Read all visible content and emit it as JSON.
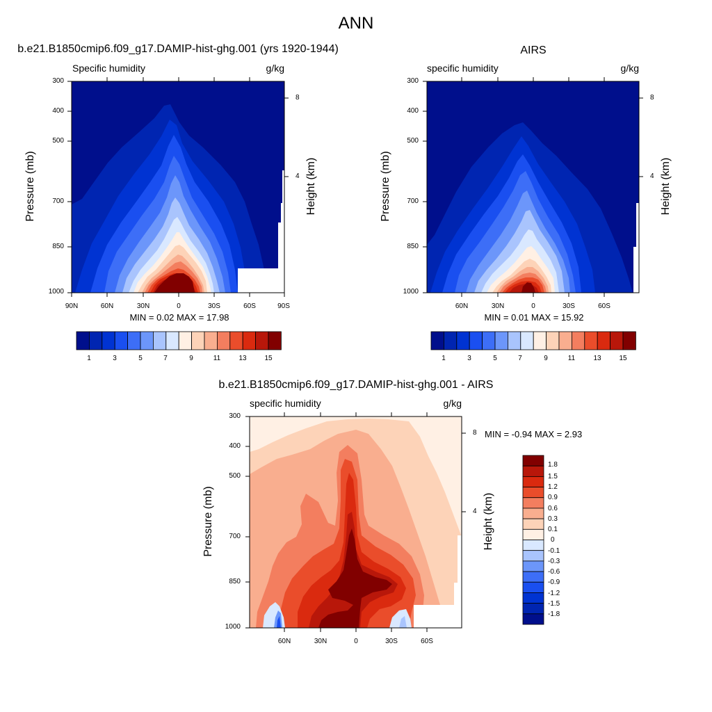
{
  "title": "ANN",
  "panels": [
    {
      "id": "model",
      "title": "b.e21.B1850cmip6.f09_g17.DAMIP-hist-ghg.001 (yrs 1920-1944)",
      "left_label": "Specific humidity",
      "right_label": "g/kg",
      "ylabel": "Pressure (mb)",
      "ylabel_right": "Height (km)",
      "pressure_ticks": [
        "300",
        "400",
        "500",
        "700",
        "850",
        "1000"
      ],
      "height_ticks": [
        "8",
        "4"
      ],
      "lat_ticks": [
        "90N",
        "60N",
        "30N",
        "0",
        "30S",
        "60S",
        "90S"
      ],
      "min_max": "MIN =   0.02  MAX =  17.98",
      "colorbar_labels": [
        "1",
        "3",
        "5",
        "7",
        "9",
        "11",
        "13",
        "15"
      ]
    },
    {
      "id": "obs",
      "title": "AIRS",
      "left_label": "specific humidity",
      "right_label": "g/kg",
      "ylabel": "Pressure (mb)",
      "ylabel_right": "Height (km)",
      "pressure_ticks": [
        "300",
        "400",
        "500",
        "700",
        "850",
        "1000"
      ],
      "height_ticks": [
        "8",
        "4"
      ],
      "lat_ticks": [
        "60N",
        "30N",
        "0",
        "30S",
        "60S"
      ],
      "min_max": "MIN =   0.01  MAX =  15.92",
      "colorbar_labels": [
        "1",
        "3",
        "5",
        "7",
        "9",
        "11",
        "13",
        "15"
      ]
    },
    {
      "id": "diff",
      "title": "b.e21.B1850cmip6.f09_g17.DAMIP-hist-ghg.001 - AIRS",
      "left_label": "specific humidity",
      "right_label": "g/kg",
      "ylabel": "Pressure (mb)",
      "ylabel_right": "Height (km)",
      "pressure_ticks": [
        "300",
        "400",
        "500",
        "700",
        "850",
        "1000"
      ],
      "height_ticks": [
        "8",
        "4"
      ],
      "lat_ticks": [
        "60N",
        "30N",
        "0",
        "30S",
        "60S"
      ],
      "min_max": "MIN =  -0.94  MAX =   2.93",
      "colorbar_labels": [
        "1.8",
        "1.5",
        "1.2",
        "0.9",
        "0.6",
        "0.3",
        "0.1",
        "0",
        "-0.1",
        "-0.3",
        "-0.6",
        "-0.9",
        "-1.2",
        "-1.5",
        "-1.8"
      ]
    }
  ],
  "chart_data": [
    {
      "type": "heatmap",
      "x_axis": "latitude",
      "y_axis": "pressure (mb)",
      "ylim": [
        1000,
        300
      ],
      "xlim": [
        "90N",
        "90S"
      ],
      "contour_levels": [
        1,
        2,
        3,
        4,
        5,
        6,
        7,
        8,
        9,
        10,
        11,
        12,
        13,
        14,
        15,
        16
      ],
      "min": 0.02,
      "max": 17.98
    },
    {
      "type": "heatmap",
      "x_axis": "latitude",
      "y_axis": "pressure (mb)",
      "ylim": [
        1000,
        300
      ],
      "contour_levels": [
        1,
        2,
        3,
        4,
        5,
        6,
        7,
        8,
        9,
        10,
        11,
        12,
        13,
        14,
        15,
        16
      ],
      "min": 0.01,
      "max": 15.92
    },
    {
      "type": "heatmap",
      "x_axis": "latitude",
      "y_axis": "pressure (mb)",
      "ylim": [
        1000,
        300
      ],
      "contour_levels": [
        -1.8,
        -1.5,
        -1.2,
        -0.9,
        -0.6,
        -0.3,
        -0.1,
        0,
        0.1,
        0.3,
        0.6,
        0.9,
        1.2,
        1.5,
        1.8
      ],
      "min": -0.94,
      "max": 2.93
    }
  ],
  "colors": {
    "seq": [
      "#000f8c",
      "#0025b1",
      "#0033d2",
      "#1a4ff0",
      "#3d6ef7",
      "#6c96fa",
      "#a9c4fd",
      "#d9e8ff",
      "#fff0e4",
      "#fdd3b8",
      "#f9ae8f",
      "#f37e5f",
      "#ea4d2b",
      "#da2a0f",
      "#b8170a",
      "#810000"
    ],
    "div": [
      "#000f8c",
      "#0025b1",
      "#0033d2",
      "#1a4ff0",
      "#3d6ef7",
      "#6c96fa",
      "#a9c4fd",
      "#d9e8ff",
      "#fff0e4",
      "#fdd3b8",
      "#f9ae8f",
      "#f37e5f",
      "#ea4d2b",
      "#da2a0f",
      "#b8170a",
      "#810000"
    ]
  }
}
